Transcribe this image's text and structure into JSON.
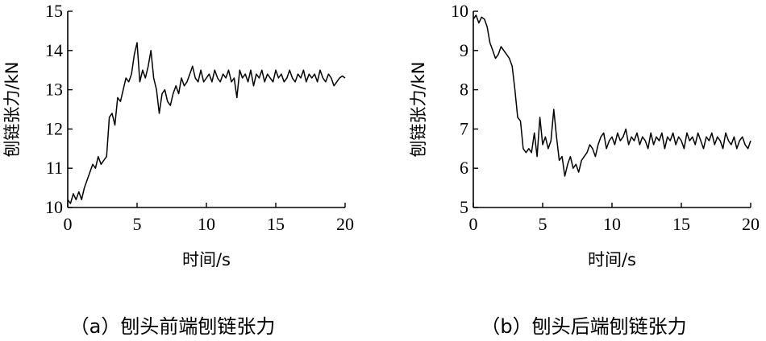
{
  "chart_data": [
    {
      "type": "line",
      "xlabel": "时间/s",
      "ylabel": "刨链张力/kN",
      "caption": "（a）刨头前端刨链张力",
      "xlim": [
        0,
        20
      ],
      "ylim": [
        10,
        15
      ],
      "xticks": [
        0,
        5,
        10,
        15,
        20
      ],
      "yticks": [
        10,
        11,
        12,
        13,
        14,
        15
      ],
      "grid": false,
      "x": [
        0,
        0.2,
        0.4,
        0.6,
        0.8,
        1.0,
        1.2,
        1.4,
        1.6,
        1.8,
        2.0,
        2.2,
        2.4,
        2.6,
        2.8,
        3.0,
        3.2,
        3.4,
        3.6,
        3.8,
        4.0,
        4.2,
        4.4,
        4.6,
        4.8,
        5.0,
        5.2,
        5.4,
        5.6,
        5.8,
        6.0,
        6.2,
        6.4,
        6.6,
        6.8,
        7.0,
        7.2,
        7.4,
        7.6,
        7.8,
        8.0,
        8.2,
        8.4,
        8.6,
        8.8,
        9.0,
        9.2,
        9.4,
        9.6,
        9.8,
        10.0,
        10.2,
        10.4,
        10.6,
        10.8,
        11.0,
        11.2,
        11.4,
        11.6,
        11.8,
        12.0,
        12.2,
        12.4,
        12.6,
        12.8,
        13.0,
        13.2,
        13.4,
        13.6,
        13.8,
        14.0,
        14.2,
        14.4,
        14.6,
        14.8,
        15.0,
        15.2,
        15.4,
        15.6,
        15.8,
        16.0,
        16.2,
        16.4,
        16.6,
        16.8,
        17.0,
        17.2,
        17.4,
        17.6,
        17.8,
        18.0,
        18.2,
        18.4,
        18.6,
        18.8,
        19.0,
        19.2,
        19.4,
        19.6,
        19.8,
        20.0
      ],
      "y": [
        10.2,
        10.1,
        10.35,
        10.2,
        10.4,
        10.2,
        10.5,
        10.7,
        10.9,
        11.1,
        11.0,
        11.3,
        11.1,
        11.2,
        11.3,
        12.3,
        12.4,
        12.1,
        12.8,
        12.7,
        13.0,
        13.3,
        13.2,
        13.4,
        13.9,
        14.2,
        13.2,
        13.5,
        13.3,
        13.6,
        14.0,
        13.3,
        13.0,
        12.4,
        12.9,
        13.0,
        12.7,
        12.6,
        12.9,
        13.1,
        12.9,
        13.3,
        13.1,
        13.2,
        13.4,
        13.6,
        13.3,
        13.2,
        13.5,
        13.2,
        13.3,
        13.4,
        13.2,
        13.5,
        13.3,
        13.2,
        13.4,
        13.3,
        13.5,
        13.2,
        13.3,
        12.8,
        13.5,
        13.3,
        13.4,
        13.2,
        13.5,
        13.1,
        13.4,
        13.3,
        13.5,
        13.2,
        13.4,
        13.3,
        13.2,
        13.5,
        13.3,
        13.4,
        13.2,
        13.3,
        13.5,
        13.3,
        13.2,
        13.4,
        13.3,
        13.5,
        13.2,
        13.4,
        13.3,
        13.4,
        13.2,
        13.5,
        13.3,
        13.2,
        13.4,
        13.3,
        13.1,
        13.2,
        13.3,
        13.35,
        13.3
      ]
    },
    {
      "type": "line",
      "xlabel": "时间/s",
      "ylabel": "刨链张力/kN",
      "caption": "（b）刨头后端刨链张力",
      "xlim": [
        0,
        20
      ],
      "ylim": [
        5,
        10
      ],
      "xticks": [
        0,
        5,
        10,
        15,
        20
      ],
      "yticks": [
        5,
        6,
        7,
        8,
        9,
        10
      ],
      "grid": false,
      "x": [
        0,
        0.2,
        0.4,
        0.6,
        0.8,
        1.0,
        1.2,
        1.4,
        1.6,
        1.8,
        2.0,
        2.2,
        2.4,
        2.6,
        2.8,
        3.0,
        3.2,
        3.4,
        3.6,
        3.8,
        4.0,
        4.2,
        4.4,
        4.6,
        4.8,
        5.0,
        5.2,
        5.4,
        5.6,
        5.8,
        6.0,
        6.2,
        6.4,
        6.6,
        6.8,
        7.0,
        7.2,
        7.4,
        7.6,
        7.8,
        8.0,
        8.2,
        8.4,
        8.6,
        8.8,
        9.0,
        9.2,
        9.4,
        9.6,
        9.8,
        10.0,
        10.2,
        10.4,
        10.6,
        10.8,
        11.0,
        11.2,
        11.4,
        11.6,
        11.8,
        12.0,
        12.2,
        12.4,
        12.6,
        12.8,
        13.0,
        13.2,
        13.4,
        13.6,
        13.8,
        14.0,
        14.2,
        14.4,
        14.6,
        14.8,
        15.0,
        15.2,
        15.4,
        15.6,
        15.8,
        16.0,
        16.2,
        16.4,
        16.6,
        16.8,
        17.0,
        17.2,
        17.4,
        17.6,
        17.8,
        18.0,
        18.2,
        18.4,
        18.6,
        18.8,
        19.0,
        19.2,
        19.4,
        19.6,
        19.8,
        20.0
      ],
      "y": [
        9.8,
        9.9,
        9.7,
        9.85,
        9.8,
        9.6,
        9.2,
        9.0,
        8.8,
        8.9,
        9.1,
        9.0,
        8.9,
        8.8,
        8.6,
        8.0,
        7.3,
        7.2,
        6.5,
        6.4,
        6.5,
        6.4,
        6.9,
        6.3,
        7.3,
        6.6,
        6.8,
        6.5,
        6.7,
        7.5,
        6.8,
        6.2,
        6.3,
        5.8,
        6.1,
        6.3,
        6.0,
        6.1,
        5.9,
        6.2,
        6.3,
        6.4,
        6.6,
        6.5,
        6.3,
        6.6,
        6.8,
        6.9,
        6.5,
        6.7,
        6.8,
        6.6,
        6.9,
        6.7,
        6.8,
        7.0,
        6.6,
        6.8,
        6.7,
        6.9,
        6.6,
        6.8,
        6.7,
        6.5,
        6.9,
        6.6,
        6.8,
        6.7,
        6.9,
        6.5,
        6.8,
        6.7,
        6.9,
        6.6,
        6.8,
        6.7,
        6.5,
        6.9,
        6.7,
        6.8,
        6.6,
        6.9,
        6.7,
        6.5,
        6.8,
        6.7,
        6.9,
        6.6,
        6.8,
        6.7,
        6.5,
        6.9,
        6.7,
        6.6,
        6.8,
        6.5,
        6.7,
        6.8,
        6.6,
        6.5,
        6.7
      ]
    }
  ]
}
